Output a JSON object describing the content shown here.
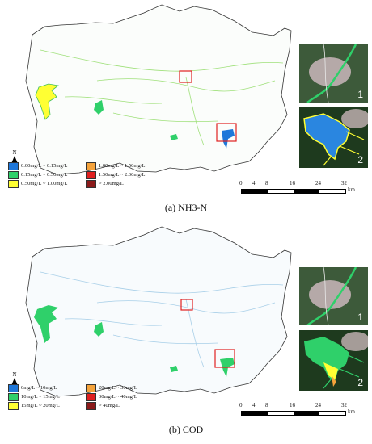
{
  "panels": [
    {
      "caption": "(a) NH3-N",
      "north_label": "N",
      "legend": [
        [
          "0.00mg/L ~ 0.15mg/L",
          "1.00mg/L ~ 1.50mg/L"
        ],
        [
          "0.15mg/L ~ 0.50mg/L",
          "1.50mg/L ~ 2.00mg/L"
        ],
        [
          "0.50mg/L ~ 1.00mg/L",
          "> 2.00mg/L"
        ]
      ],
      "legend_colors": [
        [
          "#1f77d9",
          "#f5a33b"
        ],
        [
          "#2fd06a",
          "#e02020"
        ],
        [
          "#ffff33",
          "#8b1a1a"
        ]
      ],
      "scale_labels": [
        "0",
        "4",
        "8",
        "16",
        "24",
        "32"
      ],
      "scale_unit": "km",
      "insets": [
        "1",
        "2"
      ]
    },
    {
      "caption": "(b) COD",
      "north_label": "N",
      "legend": [
        [
          "0mg/L ~ 10mg/L",
          "20mg/L ~ 30mg/L"
        ],
        [
          "10mg/L ~ 15mg/L",
          "30mg/L ~ 40mg/L"
        ],
        [
          "15mg/L ~ 20mg/L",
          "> 40mg/L"
        ]
      ],
      "legend_colors": [
        [
          "#1f77d9",
          "#f5a33b"
        ],
        [
          "#2fd06a",
          "#e02020"
        ],
        [
          "#ffff33",
          "#8b1a1a"
        ]
      ],
      "scale_labels": [
        "0",
        "4",
        "8",
        "16",
        "24",
        "32"
      ],
      "scale_unit": "km",
      "insets": [
        "1",
        "2"
      ]
    }
  ]
}
